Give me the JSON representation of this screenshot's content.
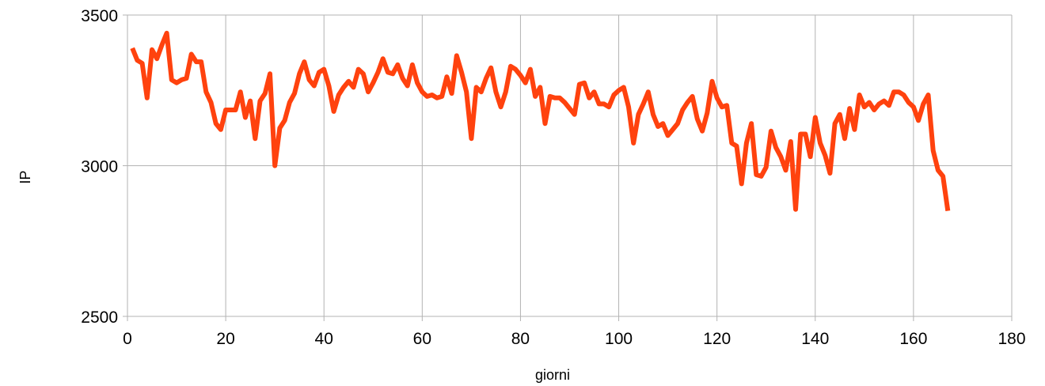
{
  "chart_data": {
    "type": "line",
    "xlabel": "giorni",
    "ylabel": "IP",
    "xlim": [
      0,
      180
    ],
    "ylim": [
      2500,
      3500
    ],
    "x_ticks": [
      0,
      20,
      40,
      60,
      80,
      100,
      120,
      140,
      160,
      180
    ],
    "y_ticks": [
      2500,
      3000,
      3500
    ],
    "grid": true,
    "legend": "none",
    "line_color": "#ff420e",
    "series": [
      {
        "x": [
          1,
          2,
          3,
          4,
          5,
          6,
          7,
          8,
          9,
          10,
          11,
          12,
          13,
          14,
          15,
          16,
          17,
          18,
          19,
          20,
          21,
          22,
          23,
          24,
          25,
          26,
          27,
          28,
          29,
          30,
          31,
          32,
          33,
          34,
          35,
          36,
          37,
          38,
          39,
          40,
          41,
          42,
          43,
          44,
          45,
          46,
          47,
          48,
          49,
          50,
          51,
          52,
          53,
          54,
          55,
          56,
          57,
          58,
          59,
          60,
          61,
          62,
          63,
          64,
          65,
          66,
          67,
          68,
          69,
          70,
          71,
          72,
          73,
          74,
          75,
          76,
          77,
          78,
          79,
          80,
          81,
          82,
          83,
          84,
          85,
          86,
          87,
          88,
          89,
          90,
          91,
          92,
          93,
          94,
          95,
          96,
          97,
          98,
          99,
          100,
          101,
          102,
          103,
          104,
          105,
          106,
          107,
          108,
          109,
          110,
          111,
          112,
          113,
          114,
          115,
          116,
          117,
          118,
          119,
          120,
          121,
          122,
          123,
          124,
          125,
          126,
          127,
          128,
          129,
          130,
          131,
          132,
          133,
          134,
          135,
          136,
          137,
          138,
          139,
          140,
          141,
          142,
          143,
          144,
          145,
          146,
          147,
          148,
          149,
          150,
          151,
          152,
          153,
          154,
          155,
          156,
          157,
          158,
          159,
          160,
          161,
          162,
          163,
          164,
          165,
          166,
          167
        ],
        "y": [
          3390,
          3350,
          3340,
          3225,
          3385,
          3355,
          3400,
          3440,
          3285,
          3275,
          3285,
          3290,
          3370,
          3345,
          3345,
          3245,
          3210,
          3140,
          3120,
          3185,
          3185,
          3185,
          3245,
          3160,
          3215,
          3090,
          3215,
          3240,
          3305,
          3000,
          3125,
          3150,
          3210,
          3240,
          3305,
          3345,
          3285,
          3265,
          3310,
          3320,
          3265,
          3180,
          3235,
          3260,
          3280,
          3260,
          3320,
          3305,
          3245,
          3275,
          3310,
          3355,
          3310,
          3305,
          3335,
          3290,
          3265,
          3335,
          3275,
          3245,
          3230,
          3235,
          3225,
          3230,
          3295,
          3240,
          3365,
          3310,
          3245,
          3090,
          3260,
          3245,
          3290,
          3325,
          3245,
          3195,
          3245,
          3330,
          3320,
          3300,
          3275,
          3320,
          3230,
          3260,
          3140,
          3230,
          3225,
          3225,
          3210,
          3190,
          3170,
          3270,
          3275,
          3225,
          3245,
          3205,
          3205,
          3195,
          3235,
          3250,
          3260,
          3195,
          3075,
          3170,
          3205,
          3245,
          3170,
          3130,
          3140,
          3100,
          3120,
          3140,
          3185,
          3210,
          3230,
          3155,
          3115,
          3175,
          3280,
          3225,
          3195,
          3200,
          3075,
          3065,
          2940,
          3075,
          3140,
          2970,
          2965,
          2995,
          3115,
          3060,
          3030,
          2985,
          3080,
          2855,
          3105,
          3105,
          3030,
          3160,
          3075,
          3035,
          2975,
          3140,
          3170,
          3090,
          3190,
          3120,
          3235,
          3195,
          3210,
          3185,
          3205,
          3215,
          3200,
          3245,
          3245,
          3235,
          3210,
          3195,
          3150,
          3205,
          3235,
          3050,
          2985,
          2965,
          2850
        ]
      }
    ]
  }
}
